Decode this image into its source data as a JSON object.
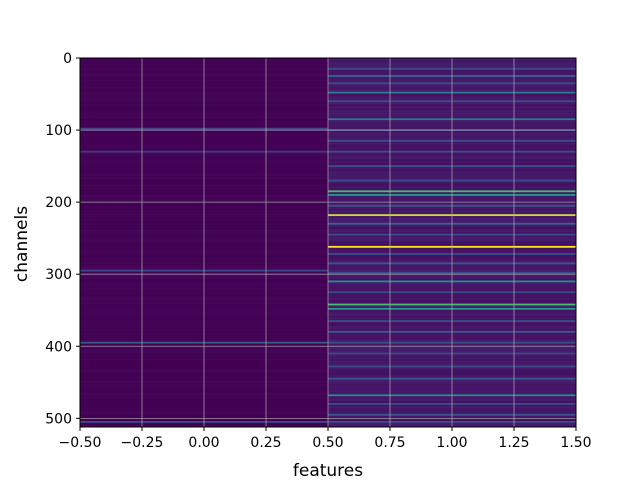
{
  "chart_data": {
    "type": "heatmap",
    "colormap": "viridis",
    "xlabel": "features",
    "ylabel": "channels",
    "xlim": [
      -0.5,
      1.5
    ],
    "ylim": [
      512,
      0
    ],
    "y_inverted": true,
    "grid": true,
    "grid_color": "#b0b0b0",
    "columns": 2,
    "rows": 512,
    "value_range": [
      0,
      1
    ],
    "base_levels": [
      0.0,
      0.06
    ],
    "x_ticks": [
      "−0.50",
      "−0.25",
      "0.00",
      "0.25",
      "0.50",
      "0.75",
      "1.00",
      "1.25",
      "1.50"
    ],
    "x_tick_values": [
      -0.5,
      -0.25,
      0.0,
      0.25,
      0.5,
      0.75,
      1.0,
      1.25,
      1.5
    ],
    "y_ticks": [
      "0",
      "100",
      "200",
      "300",
      "400",
      "500"
    ],
    "y_tick_values": [
      0,
      100,
      200,
      300,
      400,
      500
    ],
    "highlights": [
      {
        "column": 0,
        "channel": 98,
        "value": 0.25
      },
      {
        "column": 0,
        "channel": 130,
        "value": 0.22
      },
      {
        "column": 0,
        "channel": 295,
        "value": 0.25
      },
      {
        "column": 0,
        "channel": 395,
        "value": 0.35
      },
      {
        "column": 0,
        "channel": 505,
        "value": 0.3
      },
      {
        "column": 1,
        "channel": 15,
        "value": 0.3
      },
      {
        "column": 1,
        "channel": 25,
        "value": 0.4
      },
      {
        "column": 1,
        "channel": 35,
        "value": 0.3
      },
      {
        "column": 1,
        "channel": 48,
        "value": 0.45
      },
      {
        "column": 1,
        "channel": 60,
        "value": 0.3
      },
      {
        "column": 1,
        "channel": 85,
        "value": 0.45
      },
      {
        "column": 1,
        "channel": 100,
        "value": 0.3
      },
      {
        "column": 1,
        "channel": 115,
        "value": 0.3
      },
      {
        "column": 1,
        "channel": 130,
        "value": 0.3
      },
      {
        "column": 1,
        "channel": 150,
        "value": 0.3
      },
      {
        "column": 1,
        "channel": 170,
        "value": 0.3
      },
      {
        "column": 1,
        "channel": 185,
        "value": 0.7
      },
      {
        "column": 1,
        "channel": 190,
        "value": 0.55
      },
      {
        "column": 1,
        "channel": 205,
        "value": 0.35
      },
      {
        "column": 1,
        "channel": 218,
        "value": 0.92
      },
      {
        "column": 1,
        "channel": 230,
        "value": 0.4
      },
      {
        "column": 1,
        "channel": 245,
        "value": 0.3
      },
      {
        "column": 1,
        "channel": 262,
        "value": 1.0
      },
      {
        "column": 1,
        "channel": 272,
        "value": 0.3
      },
      {
        "column": 1,
        "channel": 285,
        "value": 0.35
      },
      {
        "column": 1,
        "channel": 298,
        "value": 0.3
      },
      {
        "column": 1,
        "channel": 310,
        "value": 0.5
      },
      {
        "column": 1,
        "channel": 325,
        "value": 0.3
      },
      {
        "column": 1,
        "channel": 342,
        "value": 0.7
      },
      {
        "column": 1,
        "channel": 348,
        "value": 0.55
      },
      {
        "column": 1,
        "channel": 365,
        "value": 0.3
      },
      {
        "column": 1,
        "channel": 380,
        "value": 0.35
      },
      {
        "column": 1,
        "channel": 395,
        "value": 0.3
      },
      {
        "column": 1,
        "channel": 410,
        "value": 0.3
      },
      {
        "column": 1,
        "channel": 428,
        "value": 0.3
      },
      {
        "column": 1,
        "channel": 445,
        "value": 0.35
      },
      {
        "column": 1,
        "channel": 468,
        "value": 0.5
      },
      {
        "column": 1,
        "channel": 480,
        "value": 0.3
      },
      {
        "column": 1,
        "channel": 495,
        "value": 0.35
      },
      {
        "column": 1,
        "channel": 505,
        "value": 0.3
      }
    ]
  }
}
